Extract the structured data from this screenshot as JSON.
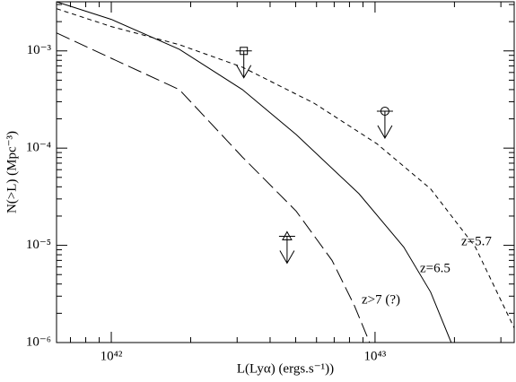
{
  "chart_data": {
    "type": "line",
    "x_label": "L(Lyα)  (ergs.s⁻¹))",
    "y_label": "N(>L)  (Mpc⁻³)",
    "log_x": true,
    "log_y": true,
    "xlim": [
      6.2e+41,
      3.37e+43
    ],
    "ylim": [
      1e-06,
      0.0032
    ],
    "xticks": [
      {
        "value": 1e+42,
        "label": "10⁴²"
      },
      {
        "value": 1e+43,
        "label": "10⁴³"
      }
    ],
    "yticks": [
      {
        "value": 1e-06,
        "label": "10⁻⁶"
      },
      {
        "value": 1e-05,
        "label": "10⁻⁵"
      },
      {
        "value": 0.0001,
        "label": "10⁻⁴"
      },
      {
        "value": 0.001,
        "label": "10⁻³"
      }
    ],
    "xminorticks": [
      7e+41,
      8e+41,
      9e+41,
      2e+42,
      3e+42,
      4e+42,
      5e+42,
      6e+42,
      7e+42,
      8e+42,
      9e+42,
      2e+43,
      3e+43
    ],
    "yminorticks": [
      2e-06,
      3e-06,
      4e-06,
      5e-06,
      6e-06,
      7e-06,
      8e-06,
      9e-06,
      2e-05,
      3e-05,
      4e-05,
      5e-05,
      6e-05,
      7e-05,
      8e-05,
      9e-05,
      0.0002,
      0.0003,
      0.0004,
      0.0005,
      0.0006,
      0.0007,
      0.0008,
      0.0009,
      0.002,
      0.003
    ],
    "series": [
      {
        "name": "z=6.5",
        "color": "#000000",
        "dash": "solid",
        "x": [
          6.2e+41,
          1e+42,
          1.81e+42,
          3.14e+42,
          5.02e+42,
          8.69e+42,
          1.285e+43,
          1.625e+43,
          1.945e+43
        ],
        "values": [
          0.0032,
          0.00211,
          0.00104,
          0.0004,
          0.000138,
          3.4e-05,
          9.6e-06,
          3.3e-06,
          1e-06
        ]
      },
      {
        "name": "z=5.7",
        "color": "#000000",
        "dash": "short",
        "x": [
          6.2e+41,
          1e+42,
          1.81e+42,
          3.14e+42,
          5.87e+42,
          1.016e+43,
          1.625e+43,
          2.4e+43,
          3.37e+43
        ],
        "values": [
          0.00272,
          0.00178,
          0.00116,
          0.00068,
          0.00029,
          0.000111,
          3.8e-05,
          9.6e-06,
          1.41e-06
        ]
      },
      {
        "name": "z>7 (?)",
        "color": "#000000",
        "dash": "long",
        "x": [
          6.2e+41,
          1e+42,
          1.81e+42,
          3.14e+42,
          5.02e+42,
          6.87e+42,
          8.35e+42,
          9.54e+42
        ],
        "values": [
          0.00153,
          0.00084,
          0.0004,
          8.1e-05,
          2.25e-05,
          7e-06,
          2.4e-06,
          1e-06
        ]
      }
    ],
    "upper_limits": {
      "x": [
        3.18e+42,
        1.09e+43,
        4.64e+42
      ],
      "values": [
        0.001,
        0.00024,
        1.24e-05
      ],
      "markers": [
        "square",
        "circle",
        "triangle"
      ]
    }
  }
}
